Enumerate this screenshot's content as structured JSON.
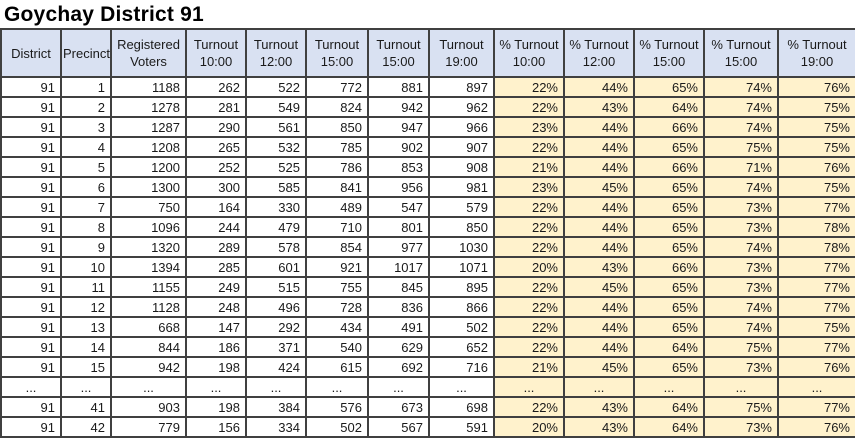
{
  "title": "Goychay District 91",
  "colors": {
    "header_bg": "#d9e1f2",
    "percent_bg": "#fff2cc",
    "border": "#404040",
    "text": "#1a1a1a"
  },
  "chart_data": {
    "type": "table",
    "title": "Goychay District 91",
    "columns": [
      {
        "line1": "District",
        "line2": ""
      },
      {
        "line1": "Precinct",
        "line2": ""
      },
      {
        "line1": "Registered",
        "line2": "Voters"
      },
      {
        "line1": "Turnout",
        "line2": "10:00"
      },
      {
        "line1": "Turnout",
        "line2": "12:00"
      },
      {
        "line1": "Turnout",
        "line2": "15:00"
      },
      {
        "line1": "Turnout",
        "line2": "15:00"
      },
      {
        "line1": "Turnout",
        "line2": "19:00"
      },
      {
        "line1": "% Turnout",
        "line2": "10:00"
      },
      {
        "line1": "% Turnout",
        "line2": "12:00"
      },
      {
        "line1": "% Turnout",
        "line2": "15:00"
      },
      {
        "line1": "% Turnout",
        "line2": "15:00"
      },
      {
        "line1": "% Turnout",
        "line2": "19:00"
      }
    ],
    "rows": [
      [
        "91",
        "1",
        "1188",
        "262",
        "522",
        "772",
        "881",
        "897",
        "22%",
        "44%",
        "65%",
        "74%",
        "76%"
      ],
      [
        "91",
        "2",
        "1278",
        "281",
        "549",
        "824",
        "942",
        "962",
        "22%",
        "43%",
        "64%",
        "74%",
        "75%"
      ],
      [
        "91",
        "3",
        "1287",
        "290",
        "561",
        "850",
        "947",
        "966",
        "23%",
        "44%",
        "66%",
        "74%",
        "75%"
      ],
      [
        "91",
        "4",
        "1208",
        "265",
        "532",
        "785",
        "902",
        "907",
        "22%",
        "44%",
        "65%",
        "75%",
        "75%"
      ],
      [
        "91",
        "5",
        "1200",
        "252",
        "525",
        "786",
        "853",
        "908",
        "21%",
        "44%",
        "66%",
        "71%",
        "76%"
      ],
      [
        "91",
        "6",
        "1300",
        "300",
        "585",
        "841",
        "956",
        "981",
        "23%",
        "45%",
        "65%",
        "74%",
        "75%"
      ],
      [
        "91",
        "7",
        "750",
        "164",
        "330",
        "489",
        "547",
        "579",
        "22%",
        "44%",
        "65%",
        "73%",
        "77%"
      ],
      [
        "91",
        "8",
        "1096",
        "244",
        "479",
        "710",
        "801",
        "850",
        "22%",
        "44%",
        "65%",
        "73%",
        "78%"
      ],
      [
        "91",
        "9",
        "1320",
        "289",
        "578",
        "854",
        "977",
        "1030",
        "22%",
        "44%",
        "65%",
        "74%",
        "78%"
      ],
      [
        "91",
        "10",
        "1394",
        "285",
        "601",
        "921",
        "1017",
        "1071",
        "20%",
        "43%",
        "66%",
        "73%",
        "77%"
      ],
      [
        "91",
        "11",
        "1155",
        "249",
        "515",
        "755",
        "845",
        "895",
        "22%",
        "45%",
        "65%",
        "73%",
        "77%"
      ],
      [
        "91",
        "12",
        "1128",
        "248",
        "496",
        "728",
        "836",
        "866",
        "22%",
        "44%",
        "65%",
        "74%",
        "77%"
      ],
      [
        "91",
        "13",
        "668",
        "147",
        "292",
        "434",
        "491",
        "502",
        "22%",
        "44%",
        "65%",
        "74%",
        "75%"
      ],
      [
        "91",
        "14",
        "844",
        "186",
        "371",
        "540",
        "629",
        "652",
        "22%",
        "44%",
        "64%",
        "75%",
        "77%"
      ],
      [
        "91",
        "15",
        "942",
        "198",
        "424",
        "615",
        "692",
        "716",
        "21%",
        "45%",
        "65%",
        "73%",
        "76%"
      ],
      [
        "...",
        "...",
        "...",
        "...",
        "...",
        "...",
        "...",
        "...",
        "...",
        "...",
        "...",
        "...",
        "..."
      ],
      [
        "91",
        "41",
        "903",
        "198",
        "384",
        "576",
        "673",
        "698",
        "22%",
        "43%",
        "64%",
        "75%",
        "77%"
      ],
      [
        "91",
        "42",
        "779",
        "156",
        "334",
        "502",
        "567",
        "591",
        "20%",
        "43%",
        "64%",
        "73%",
        "76%"
      ]
    ]
  }
}
